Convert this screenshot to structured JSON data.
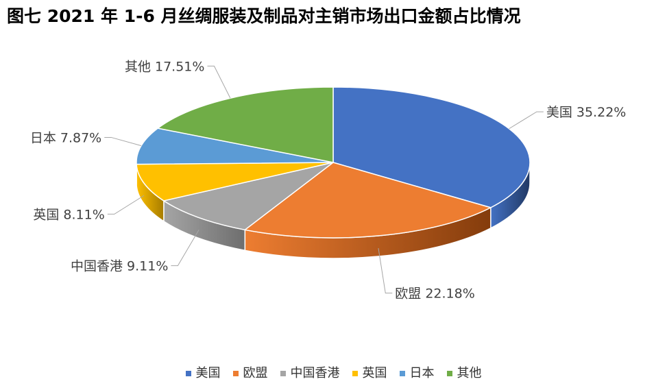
{
  "chart_data": {
    "type": "pie",
    "title": "图七   2021 年 1-6 月丝绸服装及制品对主销市场出口金额占比情况",
    "slices": [
      {
        "name": "美国",
        "value": 35.22,
        "label": "美国 35.22%",
        "color": "#4472C4",
        "side_color": "#203864"
      },
      {
        "name": "欧盟",
        "value": 22.18,
        "label": "欧盟 22.18%",
        "color": "#ED7D31",
        "side_color": "#843C0C"
      },
      {
        "name": "中国香港",
        "value": 9.11,
        "label": "中国香港 9.11%",
        "color": "#A5A5A5",
        "side_color": "#6E6E6E"
      },
      {
        "name": "英国",
        "value": 8.11,
        "label": "英国 8.11%",
        "color": "#FFC000",
        "side_color": "#A67C00"
      },
      {
        "name": "日本",
        "value": 7.87,
        "label": "日本 7.87%",
        "color": "#5B9BD5",
        "side_color": "#2E5C8A"
      },
      {
        "name": "其他",
        "value": 17.51,
        "label": "其他 17.51%",
        "color": "#70AD47",
        "side_color": "#3F6327"
      }
    ],
    "legend_position": "bottom"
  }
}
